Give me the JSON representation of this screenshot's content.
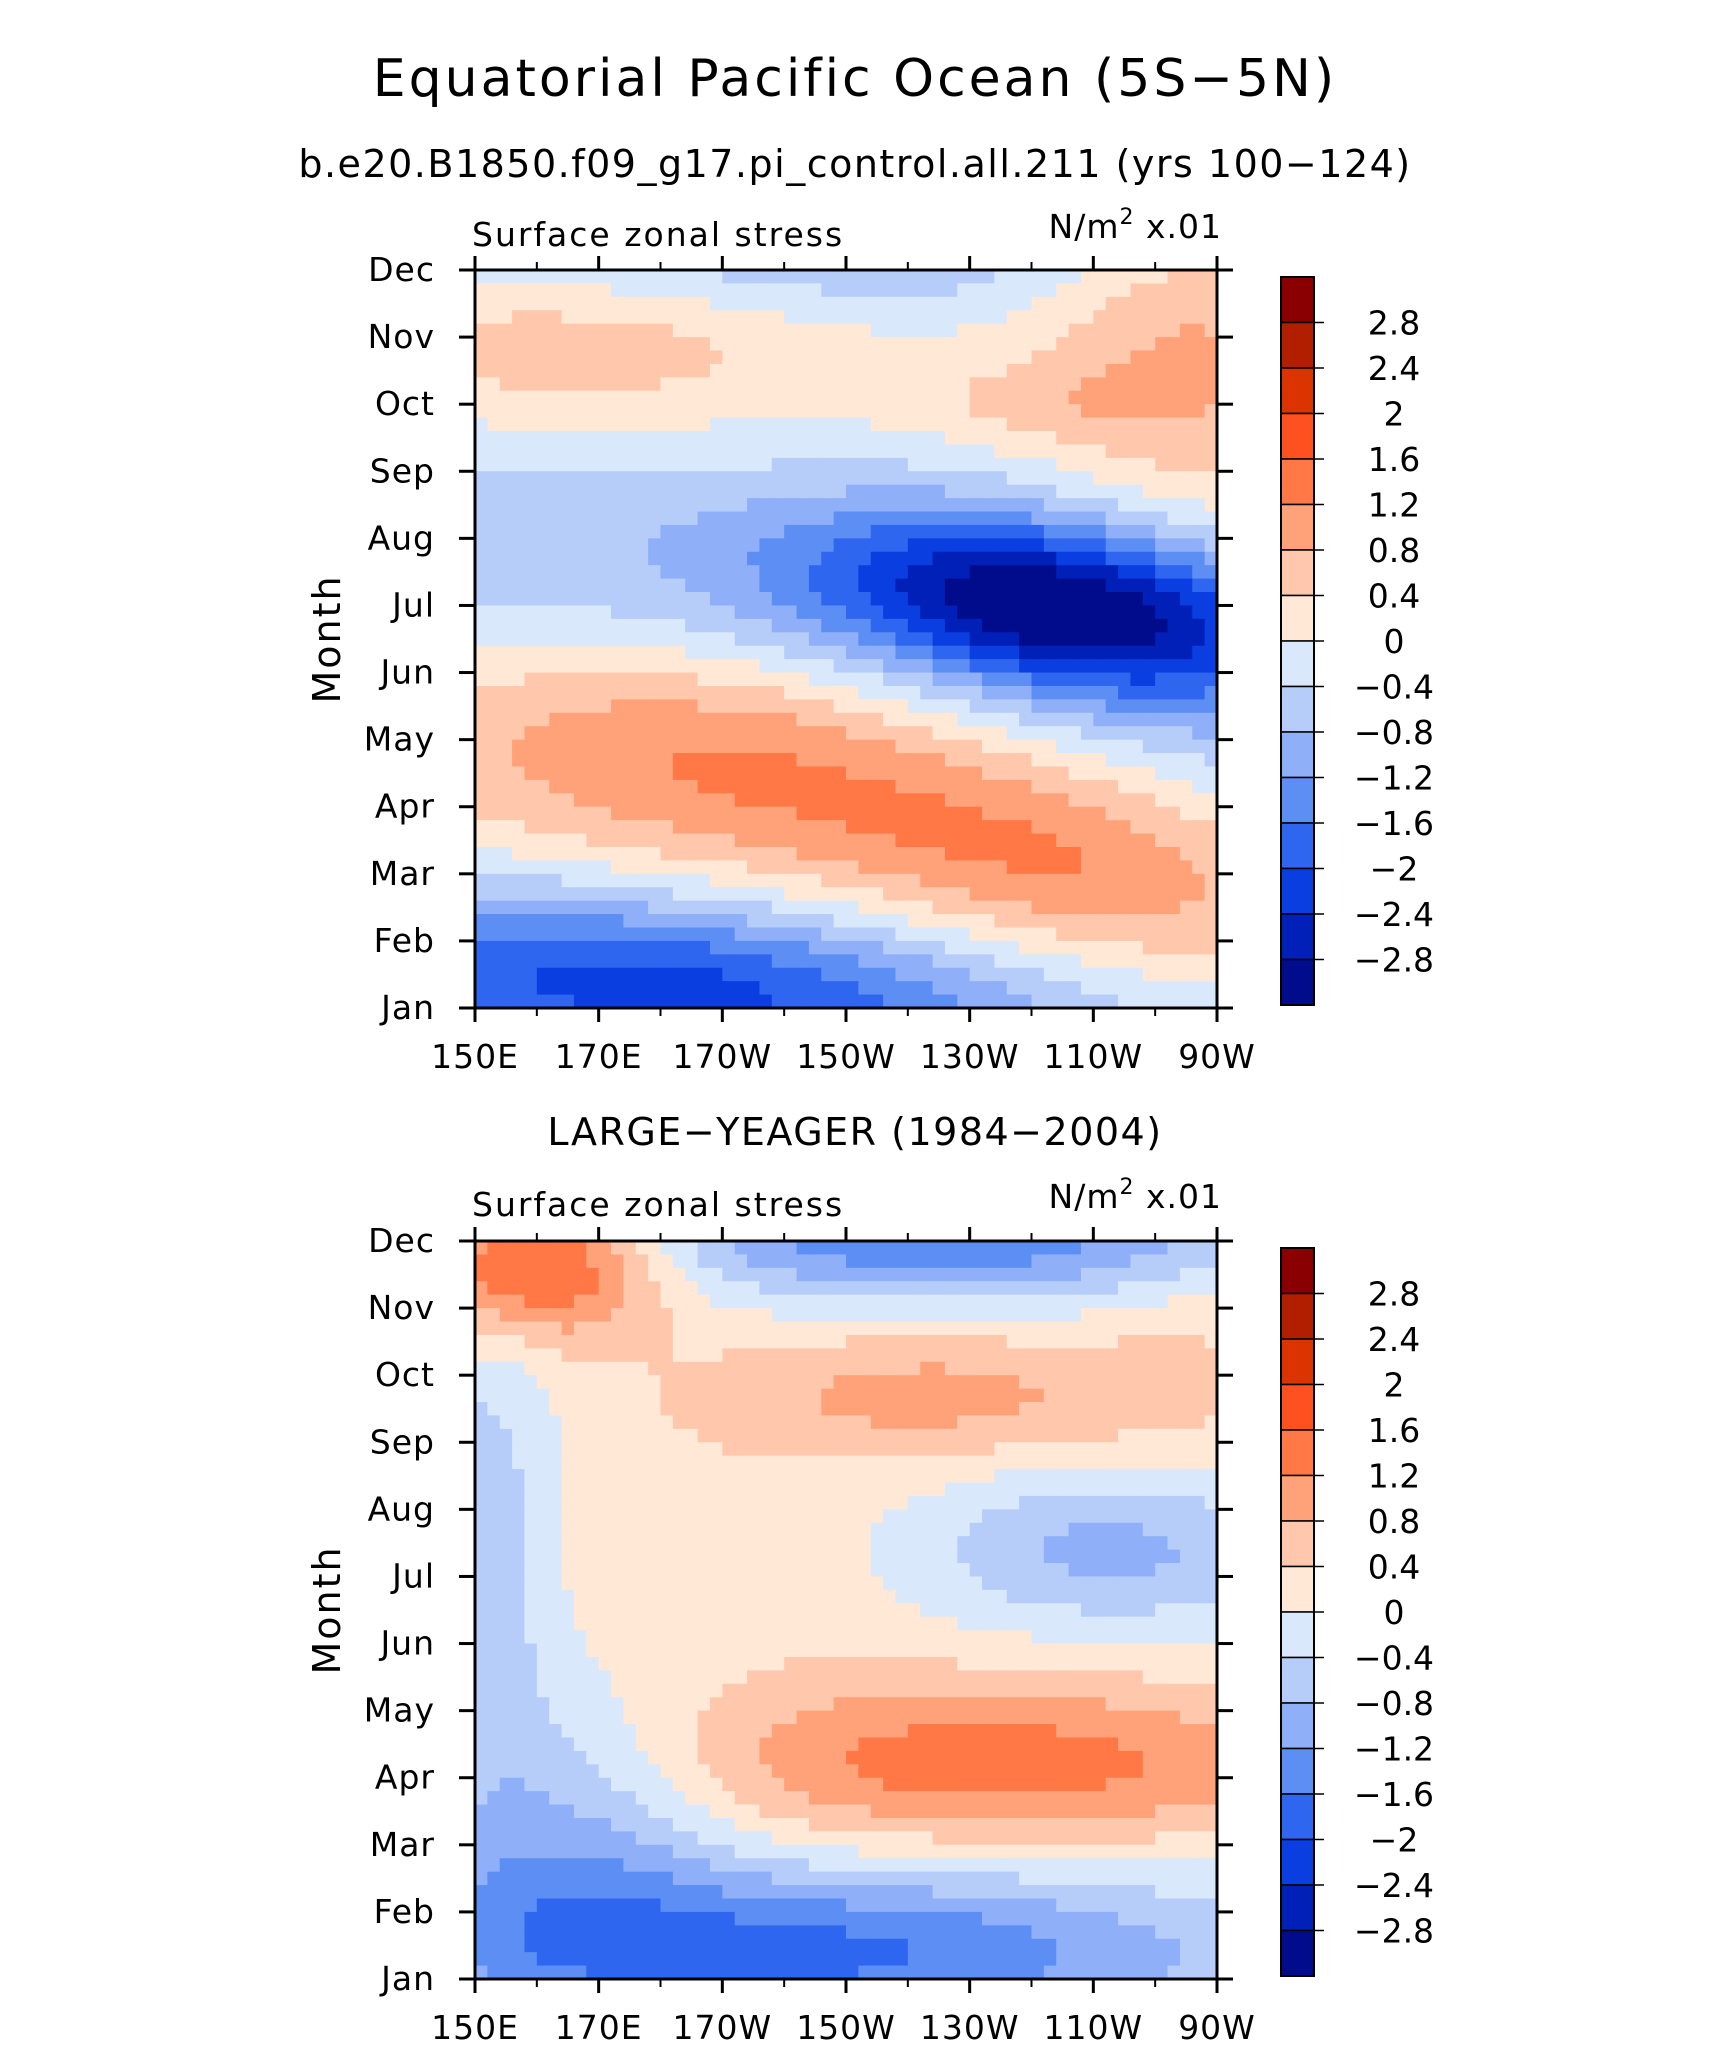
{
  "page": {
    "title": "Equatorial Pacific Ocean (5S−5N)"
  },
  "colorbar": {
    "levels": [
      "2.8",
      "2.4",
      "2",
      "1.6",
      "1.2",
      "0.8",
      "0.4",
      "0",
      "−0.4",
      "−0.8",
      "−1.2",
      "−1.6",
      "−2",
      "−2.4",
      "−2.8"
    ],
    "colors": [
      "#8a0000",
      "#b21e00",
      "#dc3400",
      "#ff5020",
      "#ff7845",
      "#ffa27a",
      "#ffc8ad",
      "#ffe9d6",
      "#d9e8fb",
      "#b6cdfa",
      "#8fb0f8",
      "#5c8ef4",
      "#2f66f0",
      "#0a3ee0",
      "#0020b8",
      "#000c8c"
    ]
  },
  "chart_data": [
    {
      "type": "heatmap",
      "title": "b.e20.B1850.f09_g17.pi_control.all.211 (yrs 100−124)",
      "left_label": "Surface zonal stress",
      "units_prefix": "N/m",
      "units_exp": "2",
      "units_scale": "x.01",
      "ylabel": "Month",
      "x_ticks": [
        "150E",
        "170E",
        "170W",
        "150W",
        "130W",
        "110W",
        "90W"
      ],
      "x_values": [
        150,
        170,
        190,
        210,
        230,
        250,
        270
      ],
      "xlim": [
        150,
        270
      ],
      "y_ticks": [
        "Jan",
        "Feb",
        "Mar",
        "Apr",
        "May",
        "Jun",
        "Jul",
        "Aug",
        "Sep",
        "Oct",
        "Nov",
        "Dec"
      ],
      "ylim": [
        1,
        12
      ],
      "z_scale": 0.01,
      "z_units": "N/m^2",
      "blobs": [
        [
          210,
          6.2,
          70,
          1.6,
          0.4,
          -1.3
        ],
        [
          245,
          7.0,
          28,
          0.9,
          0.3,
          -2.8
        ],
        [
          195,
          5.0,
          42,
          1.4,
          0.2,
          1.9
        ],
        [
          250,
          3.0,
          28,
          1.1,
          0.25,
          1.1
        ],
        [
          180,
          1.3,
          50,
          1.0,
          0.2,
          -2.2
        ],
        [
          265,
          11.0,
          18,
          2.0,
          0.0,
          0.9
        ],
        [
          165,
          10.8,
          30,
          0.8,
          0.0,
          0.7
        ],
        [
          215,
          12.3,
          45,
          0.7,
          0.0,
          -0.8
        ],
        [
          240,
          10.0,
          15,
          0.4,
          0.0,
          0.4
        ]
      ]
    },
    {
      "type": "heatmap",
      "title": "LARGE−YEAGER (1984−2004)",
      "left_label": "Surface zonal stress",
      "units_prefix": "N/m",
      "units_exp": "2",
      "units_scale": "x.01",
      "ylabel": "Month",
      "x_ticks": [
        "150E",
        "170E",
        "170W",
        "150W",
        "130W",
        "110W",
        "90W"
      ],
      "x_values": [
        150,
        170,
        190,
        210,
        230,
        250,
        270
      ],
      "xlim": [
        150,
        270
      ],
      "y_ticks": [
        "Jan",
        "Feb",
        "Mar",
        "Apr",
        "May",
        "Jun",
        "Jul",
        "Aug",
        "Sep",
        "Oct",
        "Nov",
        "Dec"
      ],
      "ylim": [
        1,
        12
      ],
      "z_scale": 0.01,
      "z_units": "N/m^2",
      "blobs": [
        [
          160,
          11.7,
          15,
          0.8,
          0.0,
          2.0
        ],
        [
          235,
          4.2,
          40,
          0.9,
          0.0,
          1.4
        ],
        [
          225,
          9.7,
          28,
          0.7,
          0.0,
          0.9
        ],
        [
          205,
          1.4,
          48,
          0.9,
          0.0,
          -1.7
        ],
        [
          165,
          3.2,
          18,
          1.6,
          0.0,
          -1.0
        ],
        [
          225,
          12.0,
          40,
          0.6,
          0.0,
          -1.5
        ],
        [
          252,
          7.4,
          22,
          0.8,
          0.0,
          -1.0
        ],
        [
          152,
          7.5,
          8,
          2.5,
          0.0,
          -0.8
        ],
        [
          180,
          7.0,
          40,
          2.0,
          0.0,
          0.3
        ],
        [
          265,
          10.5,
          10,
          1.5,
          0.0,
          0.3
        ]
      ]
    }
  ]
}
